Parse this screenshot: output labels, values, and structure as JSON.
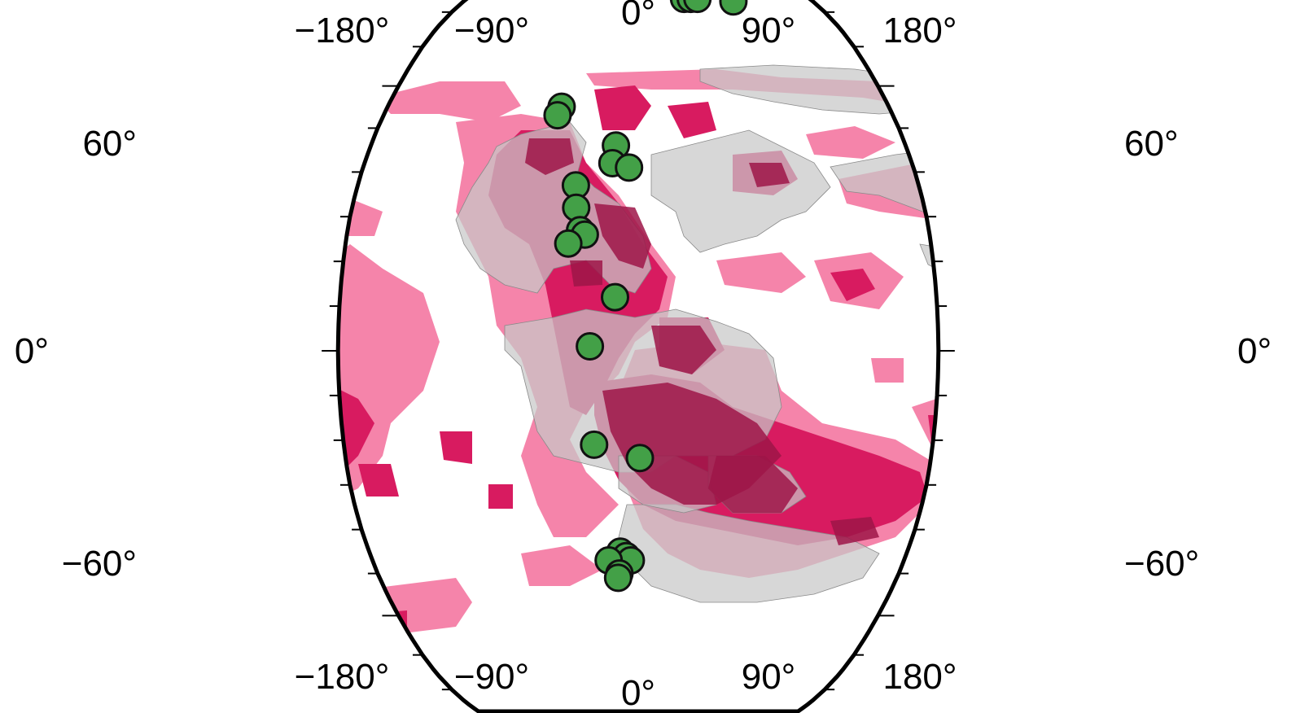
{
  "map": {
    "projection": "robinson",
    "colors": {
      "background": "#ffffff",
      "light_pink": "#f584aa",
      "magenta": "#d81b60",
      "dark_overlap": "#9e1548",
      "continent_gray": "#c8c8c8",
      "continent_gray_opacity": 0.85,
      "outline": "#000000",
      "point_fill": "#43a047",
      "point_stroke": "#111111"
    },
    "lon_labels": [
      "−180°",
      "−90°",
      "0°",
      "90°",
      "180°"
    ],
    "lat_labels_left": [
      "60°",
      "0°",
      "−60°"
    ],
    "lat_labels_right": [
      "60°",
      "0°",
      "−60°"
    ],
    "points": [
      {
        "lon": 48,
        "lat": 85
      },
      {
        "lon": 55,
        "lat": 85
      },
      {
        "lon": 62,
        "lat": 85
      },
      {
        "lon": 98,
        "lat": 84
      },
      {
        "lon": -55,
        "lat": 55
      },
      {
        "lon": -57,
        "lat": 53
      },
      {
        "lon": -15,
        "lat": 46
      },
      {
        "lon": -17,
        "lat": 42
      },
      {
        "lon": -6,
        "lat": 41
      },
      {
        "lon": -40,
        "lat": 37
      },
      {
        "lon": -39,
        "lat": 32
      },
      {
        "lon": -36,
        "lat": 27
      },
      {
        "lon": -33,
        "lat": 26
      },
      {
        "lon": -43,
        "lat": 24
      },
      {
        "lon": -14,
        "lat": 12
      },
      {
        "lon": -29,
        "lat": 1
      },
      {
        "lon": -27,
        "lat": -21
      },
      {
        "lon": 1,
        "lat": -24
      },
      {
        "lon": -12,
        "lat": -45
      },
      {
        "lon": -8,
        "lat": -46
      },
      {
        "lon": -5,
        "lat": -47
      },
      {
        "lon": -20,
        "lat": -47
      },
      {
        "lon": -13,
        "lat": -50
      },
      {
        "lon": -14,
        "lat": -51
      }
    ]
  }
}
